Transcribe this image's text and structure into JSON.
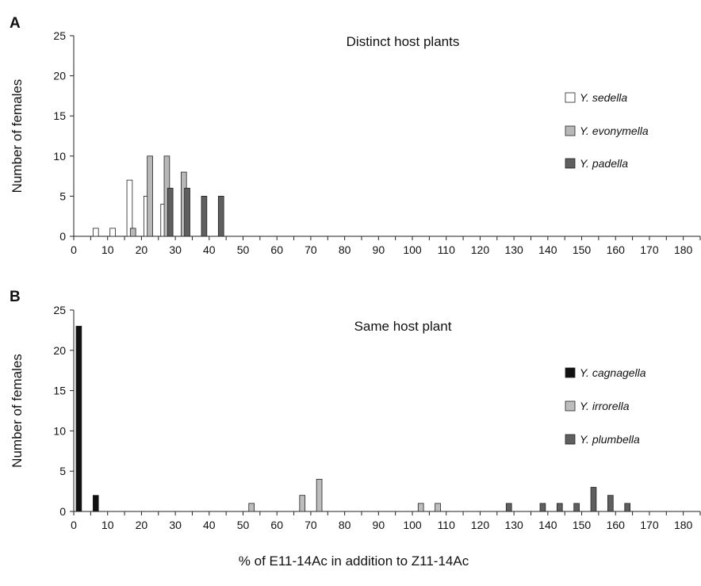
{
  "x_axis_label": "% of E11-14Ac in addition to Z11-14Ac",
  "chart_data": [
    {
      "type": "bar",
      "panel_letter": "A",
      "title": "Distinct host plants",
      "ylabel": "Number of females",
      "xlabel": "",
      "xlim": [
        0,
        185
      ],
      "ylim": [
        0,
        25
      ],
      "x_ticks": [
        0,
        5,
        10,
        15,
        20,
        25,
        30,
        35,
        40,
        45,
        50,
        55,
        60,
        65,
        70,
        75,
        80,
        85,
        90,
        95,
        100,
        105,
        110,
        115,
        120,
        125,
        130,
        135,
        140,
        145,
        150,
        155,
        160,
        165,
        170,
        175,
        180,
        185
      ],
      "x_tick_labels": [
        0,
        10,
        20,
        30,
        40,
        50,
        60,
        70,
        80,
        90,
        100,
        110,
        120,
        130,
        140,
        150,
        160,
        170,
        180
      ],
      "y_ticks": [
        0,
        5,
        10,
        15,
        20,
        25
      ],
      "grid": false,
      "legend_position": "right",
      "series": [
        {
          "name": "Y. sedella",
          "color": "#ffffff",
          "x": [
            6.5,
            11.5,
            16.5,
            21.5,
            26.5
          ],
          "values": [
            1,
            1,
            7,
            5,
            4
          ]
        },
        {
          "name": "Y. evonymella",
          "color": "#b8b8b8",
          "x": [
            17.5,
            22.5,
            27.5,
            32.5
          ],
          "values": [
            1,
            10,
            10,
            8
          ]
        },
        {
          "name": "Y. padella",
          "color": "#5f5f5f",
          "x": [
            28.5,
            33.5,
            38.5,
            43.5
          ],
          "values": [
            6,
            6,
            5,
            5
          ]
        }
      ]
    },
    {
      "type": "bar",
      "panel_letter": "B",
      "title": "Same host plant",
      "ylabel": "Number of females",
      "xlabel": "",
      "xlim": [
        0,
        185
      ],
      "ylim": [
        0,
        25
      ],
      "x_ticks": [
        0,
        5,
        10,
        15,
        20,
        25,
        30,
        35,
        40,
        45,
        50,
        55,
        60,
        65,
        70,
        75,
        80,
        85,
        90,
        95,
        100,
        105,
        110,
        115,
        120,
        125,
        130,
        135,
        140,
        145,
        150,
        155,
        160,
        165,
        170,
        175,
        180,
        185
      ],
      "x_tick_labels": [
        0,
        10,
        20,
        30,
        40,
        50,
        60,
        70,
        80,
        90,
        100,
        110,
        120,
        130,
        140,
        150,
        160,
        170,
        180
      ],
      "y_ticks": [
        0,
        5,
        10,
        15,
        20,
        25
      ],
      "grid": false,
      "legend_position": "right",
      "series": [
        {
          "name": "Y. cagnagella",
          "color": "#111111",
          "x": [
            1.5,
            6.5
          ],
          "values": [
            23,
            2
          ]
        },
        {
          "name": "Y. irrorella",
          "color": "#bdbdbd",
          "x": [
            52.5,
            67.5,
            72.5,
            102.5,
            107.5
          ],
          "values": [
            1,
            2,
            4,
            1,
            1
          ]
        },
        {
          "name": "Y. plumbella",
          "color": "#5f5f5f",
          "x": [
            128.5,
            138.5,
            143.5,
            148.5,
            153.5,
            158.5,
            163.5
          ],
          "values": [
            1,
            1,
            1,
            1,
            3,
            2,
            1
          ]
        }
      ]
    }
  ]
}
